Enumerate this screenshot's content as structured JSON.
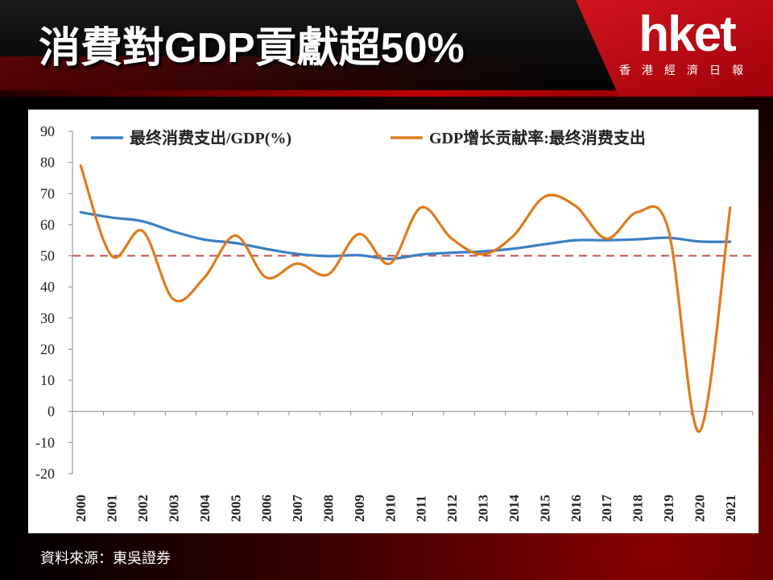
{
  "header": {
    "title": "消費對GDP貢獻超50%",
    "logo": "hket",
    "logo_subtitle": "香港經濟日報"
  },
  "footer": {
    "source": "資料來源：東吳證券"
  },
  "colors": {
    "series_blue": "#3a7fc4",
    "series_orange": "#e07b1a",
    "reference_line": "#c0504d",
    "brand_red": "#d0141e"
  },
  "chart_data": {
    "type": "line",
    "title": "",
    "xlabel": "",
    "ylabel": "",
    "ylim": [
      -20,
      90
    ],
    "yticks": [
      90,
      80,
      70,
      60,
      50,
      40,
      30,
      20,
      10,
      0,
      -10,
      -20
    ],
    "categories": [
      "2000",
      "2001",
      "2002",
      "2003",
      "2004",
      "2005",
      "2006",
      "2007",
      "2008",
      "2009",
      "2010",
      "2011",
      "2012",
      "2013",
      "2014",
      "2015",
      "2016",
      "2017",
      "2018",
      "2019",
      "2020",
      "2021"
    ],
    "series": [
      {
        "name": "最终消费支出/GDP(%)",
        "color": "#3a7fc4",
        "values": [
          64,
          62.3,
          61.1,
          57.8,
          55.2,
          54.1,
          52.2,
          50.6,
          49.9,
          50.2,
          49.0,
          50.4,
          51.0,
          51.4,
          52.3,
          53.7,
          55.0,
          55.0,
          55.3,
          55.8,
          54.6,
          54.5
        ]
      },
      {
        "name": "GDP增长贡献率:最终消费支出",
        "color": "#e07b1a",
        "values": [
          79,
          50,
          58,
          36,
          43,
          56.5,
          43,
          47.5,
          44,
          57,
          47.5,
          65.5,
          55.5,
          50.5,
          56.5,
          69,
          66,
          55.5,
          64,
          58.5,
          -6.5,
          65.5
        ]
      }
    ],
    "reference_lines": [
      {
        "y": 50,
        "style": "dashed",
        "color": "#c0504d"
      }
    ],
    "legend_position": "top",
    "grid": false
  }
}
